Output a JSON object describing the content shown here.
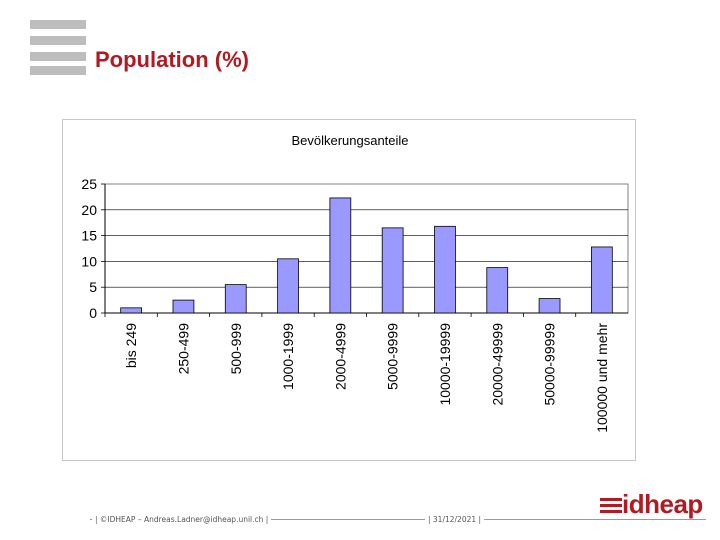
{
  "slide": {
    "title": "Population (%)"
  },
  "footer": {
    "left_text": "| ©IDHEAP – Andreas.Ladner@idheap.unil.ch |",
    "date_text": "| 31/12/2021 |",
    "brand": "idheap"
  },
  "colors": {
    "title": "#b11a21",
    "bar_fill": "#9999ff",
    "bar_stroke": "#000000"
  },
  "chart_data": {
    "type": "bar",
    "title": "Bevölkerungsanteile",
    "categories": [
      "bis 249",
      "250-499",
      "500-999",
      "1000-1999",
      "2000-4999",
      "5000-9999",
      "10000-19999",
      "20000-49999",
      "50000-99999",
      "100000 und mehr"
    ],
    "values": [
      1,
      2.5,
      5.5,
      10.5,
      22.3,
      16.5,
      16.8,
      8.8,
      2.8,
      12.8
    ],
    "ylim": [
      0,
      25
    ],
    "yticks": [
      0,
      5,
      10,
      15,
      20,
      25
    ],
    "xlabel": "",
    "ylabel": "",
    "grid": true,
    "legend": "none"
  }
}
